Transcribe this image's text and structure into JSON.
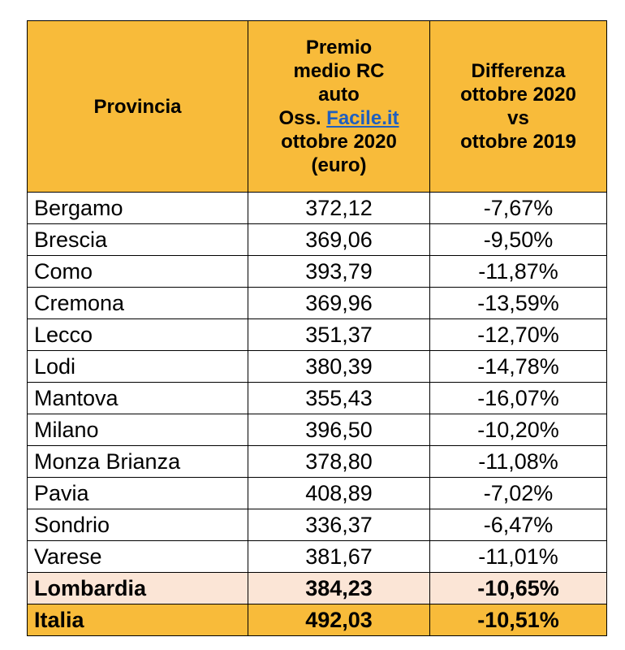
{
  "header": {
    "col0": "Provincia",
    "col1": {
      "lines": [
        "Premio",
        "medio RC",
        "auto"
      ],
      "prefix": "Oss.",
      "link": "Facile.it",
      "lines_after": [
        "ottobre 2020",
        "(euro)"
      ]
    },
    "col2": {
      "lines": [
        "Differenza",
        "ottobre 2020",
        "vs",
        "ottobre 2019"
      ]
    }
  },
  "table": {
    "rows": [
      [
        "Bergamo",
        "372,12",
        "-7,67%"
      ],
      [
        "Brescia",
        "369,06",
        "-9,50%"
      ],
      [
        "Como",
        "393,79",
        "-11,87%"
      ],
      [
        "Cremona",
        "369,96",
        "-13,59%"
      ],
      [
        "Lecco",
        "351,37",
        "-12,70%"
      ],
      [
        "Lodi",
        "380,39",
        "-14,78%"
      ],
      [
        "Mantova",
        "355,43",
        "-16,07%"
      ],
      [
        "Milano",
        "396,50",
        "-10,20%"
      ],
      [
        "Monza Brianza",
        "378,80",
        "-11,08%"
      ],
      [
        "Pavia",
        "408,89",
        "-7,02%"
      ],
      [
        "Sondrio",
        "336,37",
        "-6,47%"
      ],
      [
        "Varese",
        "381,67",
        "-11,01%"
      ]
    ],
    "totals": [
      [
        "Lombardia",
        "384,23",
        "-10,65%"
      ],
      [
        "Italia",
        "492,03",
        "-10,51%"
      ]
    ]
  }
}
